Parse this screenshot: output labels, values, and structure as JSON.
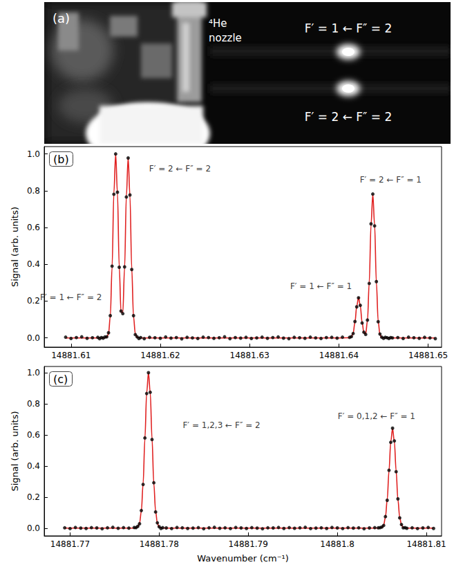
{
  "chart_data": [
    {
      "type": "image",
      "label": "(a)",
      "nozzle_label": "⁴He nozzle",
      "spot_labels": [
        "F′ = 1 ← F″ = 2",
        "F′ = 2 ← F″ = 2"
      ]
    },
    {
      "type": "scatter",
      "label": "(b)",
      "ylabel": "Signal (arb. units)",
      "grid": false,
      "xlim": [
        14881.607,
        14881.6515
      ],
      "xticks": [
        14881.61,
        14881.62,
        14881.63,
        14881.64,
        14881.65
      ],
      "ylim": [
        -0.05,
        1.04
      ],
      "yticks": [
        {
          "value": 0,
          "label": "0.0"
        },
        0.2,
        0.4,
        0.6,
        0.8,
        {
          "value": 1,
          "label": "1.0"
        }
      ],
      "x": [
        14881.6094,
        14881.61,
        14881.6106,
        14881.6112,
        14881.6118,
        14881.6124,
        14881.613,
        14881.6132,
        14881.6134,
        14881.6136,
        14881.6138,
        14881.614,
        14881.6142,
        14881.6144,
        14881.6146,
        14881.6148,
        14881.615,
        14881.6152,
        14881.6154,
        14881.6156,
        14881.6158,
        14881.616,
        14881.6162,
        14881.6164,
        14881.6166,
        14881.6168,
        14881.617,
        14881.6172,
        14881.6174,
        14881.6176,
        14881.6178,
        14881.6182,
        14881.6188,
        14881.6194,
        14881.62,
        14881.6206,
        14881.6212,
        14881.6218,
        14881.6224,
        14881.623,
        14881.6236,
        14881.6242,
        14881.6248,
        14881.6254,
        14881.626,
        14881.6266,
        14881.6272,
        14881.6278,
        14881.6284,
        14881.629,
        14881.6296,
        14881.6302,
        14881.6308,
        14881.6314,
        14881.632,
        14881.6326,
        14881.6332,
        14881.6338,
        14881.6344,
        14881.635,
        14881.6356,
        14881.6362,
        14881.6368,
        14881.6374,
        14881.638,
        14881.6386,
        14881.6392,
        14881.6398,
        14881.6404,
        14881.6412,
        14881.6414,
        14881.6416,
        14881.6418,
        14881.642,
        14881.6422,
        14881.6424,
        14881.6426,
        14881.6428,
        14881.643,
        14881.6432,
        14881.6434,
        14881.6436,
        14881.6438,
        14881.644,
        14881.6442,
        14881.6444,
        14881.6446,
        14881.6448,
        14881.645,
        14881.6452,
        14881.6454,
        14881.6456,
        14881.6458,
        14881.646,
        14881.6466,
        14881.6472,
        14881.6478,
        14881.6484,
        14881.649,
        14881.6496,
        14881.6502,
        14881.6508
      ],
      "series": [
        {
          "type": "line",
          "line_style": "solid",
          "color": "#e02020",
          "values": [
            0,
            0,
            0,
            0,
            0,
            0,
            0,
            0,
            0,
            0,
            0,
            0.003,
            0.022,
            0.118,
            0.386,
            0.788,
            1.0,
            0.788,
            0.389,
            0.14,
            0.138,
            0.381,
            0.772,
            0.98,
            0.772,
            0.378,
            0.116,
            0.022,
            0.003,
            0,
            0,
            0,
            0,
            0,
            0,
            0,
            0,
            0,
            0,
            0,
            0,
            0,
            0,
            0,
            0,
            0,
            0,
            0,
            0,
            0,
            0,
            0,
            0,
            0,
            0,
            0,
            0,
            0,
            0,
            0,
            0,
            0,
            0,
            0,
            0,
            0,
            0,
            0,
            0,
            0.001,
            0.005,
            0.026,
            0.085,
            0.173,
            0.22,
            0.173,
            0.085,
            0.028,
            0.022,
            0.093,
            0.301,
            0.615,
            0.78,
            0.615,
            0.301,
            0.092,
            0.017,
            0.002,
            0,
            0,
            0,
            0,
            0,
            0,
            0,
            0,
            0,
            0,
            0,
            0,
            0,
            0
          ]
        },
        {
          "type": "scatter",
          "marker": "circle",
          "color": "#000000",
          "values": [
            0.004,
            -0.003,
            0.002,
            0.006,
            -0.002,
            0.001,
            0.003,
            -0.004,
            0.002,
            -0.001,
            0.005,
            0.006,
            0.028,
            0.121,
            0.39,
            0.781,
            1.0,
            0.792,
            0.384,
            0.146,
            0.132,
            0.386,
            0.766,
            0.978,
            0.777,
            0.372,
            0.121,
            0.018,
            0.006,
            -0.003,
            0.002,
            -0.004,
            0.003,
            0.001,
            -0.002,
            0.005,
            -0.001,
            0.002,
            -0.005,
            0.003,
            0.0,
            -0.003,
            0.004,
            0.002,
            -0.002,
            0.001,
            0.006,
            -0.004,
            0.002,
            -0.001,
            0.003,
            -0.003,
            0.0,
            0.004,
            -0.002,
            0.002,
            0.005,
            -0.001,
            -0.004,
            0.003,
            0.001,
            -0.002,
            0.004,
            0.0,
            -0.003,
            0.002,
            0.003,
            -0.001,
            0.004,
            0.003,
            0.007,
            0.024,
            0.089,
            0.169,
            0.218,
            0.177,
            0.081,
            0.031,
            0.019,
            0.097,
            0.296,
            0.62,
            0.782,
            0.609,
            0.306,
            0.088,
            0.021,
            0.004,
            -0.002,
            0.003,
            0.001,
            -0.003,
            0.002,
            0.0,
            0.002,
            -0.003,
            0.004,
            0.001,
            -0.002,
            0.003,
            0.0,
            -0.004
          ]
        }
      ],
      "annotations": [
        {
          "text": "F′ = 1 ← F″ = 2",
          "x": 14881.61,
          "y": 0.22
        },
        {
          "text": "F′ = 2 ← F″ = 2",
          "x": 14881.6222,
          "y": 0.92
        },
        {
          "text": "F′ = 1 ← F″ = 1",
          "x": 14881.638,
          "y": 0.28
        },
        {
          "text": "F′ = 2 ← F″ = 1",
          "x": 14881.6458,
          "y": 0.86
        }
      ]
    },
    {
      "type": "scatter",
      "label": "(c)",
      "xlabel": "Wavenumber (cm⁻¹)",
      "ylabel": "Signal (arb. units)",
      "grid": false,
      "xlim": [
        14881.7671,
        14881.8117
      ],
      "xticks": [
        14881.77,
        14881.78,
        14881.79,
        14881.8,
        14881.81
      ],
      "ylim": [
        -0.05,
        1.04
      ],
      "yticks": [
        {
          "value": 0,
          "label": "0.0"
        },
        0.2,
        0.4,
        0.6,
        0.8,
        {
          "value": 1,
          "label": "1.0"
        }
      ],
      "x": [
        14881.7694,
        14881.77,
        14881.7706,
        14881.7712,
        14881.7718,
        14881.7724,
        14881.773,
        14881.7736,
        14881.7742,
        14881.7748,
        14881.7754,
        14881.776,
        14881.7766,
        14881.7772,
        14881.7774,
        14881.7776,
        14881.7778,
        14881.778,
        14881.7782,
        14881.7784,
        14881.7786,
        14881.7788,
        14881.779,
        14881.7792,
        14881.7794,
        14881.7796,
        14881.7798,
        14881.78,
        14881.7802,
        14881.7804,
        14881.7808,
        14881.7814,
        14881.782,
        14881.7826,
        14881.7832,
        14881.7838,
        14881.7844,
        14881.785,
        14881.7856,
        14881.7862,
        14881.7868,
        14881.7874,
        14881.788,
        14881.7886,
        14881.7892,
        14881.7898,
        14881.7904,
        14881.791,
        14881.7916,
        14881.7922,
        14881.7928,
        14881.7934,
        14881.794,
        14881.7946,
        14881.7952,
        14881.7958,
        14881.7964,
        14881.797,
        14881.7976,
        14881.7982,
        14881.7988,
        14881.7994,
        14881.8,
        14881.8006,
        14881.8012,
        14881.8018,
        14881.8024,
        14881.803,
        14881.8036,
        14881.8042,
        14881.8046,
        14881.8048,
        14881.805,
        14881.8052,
        14881.8054,
        14881.8056,
        14881.8058,
        14881.806,
        14881.8062,
        14881.8064,
        14881.8066,
        14881.8068,
        14881.807,
        14881.8072,
        14881.8074,
        14881.8076,
        14881.8078,
        14881.8084,
        14881.809,
        14881.8096,
        14881.8102,
        14881.8108
      ],
      "series": [
        {
          "type": "line",
          "line_style": "solid",
          "color": "#e02020",
          "values": [
            0,
            0,
            0,
            0,
            0,
            0,
            0,
            0,
            0,
            0,
            0,
            0,
            0,
            0,
            0.001,
            0.007,
            0.031,
            0.109,
            0.287,
            0.575,
            0.871,
            1.0,
            0.871,
            0.575,
            0.287,
            0.109,
            0.031,
            0.007,
            0.001,
            0,
            0,
            0,
            0,
            0,
            0,
            0,
            0,
            0,
            0,
            0,
            0,
            0,
            0,
            0,
            0,
            0,
            0,
            0,
            0,
            0,
            0,
            0,
            0,
            0,
            0,
            0,
            0,
            0,
            0,
            0,
            0,
            0,
            0,
            0,
            0,
            0,
            0,
            0,
            0,
            0,
            0,
            0.001,
            0.004,
            0.02,
            0.07,
            0.184,
            0.368,
            0.557,
            0.64,
            0.557,
            0.368,
            0.184,
            0.07,
            0.02,
            0.004,
            0.001,
            0,
            0,
            0,
            0,
            0,
            0
          ]
        },
        {
          "type": "scatter",
          "marker": "circle",
          "color": "#000000",
          "values": [
            0.002,
            -0.003,
            0.004,
            0.0,
            -0.002,
            0.003,
            0.001,
            -0.004,
            0.002,
            0.005,
            -0.001,
            0.003,
            0.0,
            0.004,
            0.003,
            0.011,
            0.028,
            0.113,
            0.281,
            0.58,
            0.866,
            1.0,
            0.874,
            0.57,
            0.292,
            0.104,
            0.034,
            0.009,
            -0.002,
            0.003,
            0.001,
            -0.003,
            0.004,
            0.002,
            -0.002,
            0.0,
            0.003,
            -0.004,
            0.002,
            0.005,
            -0.001,
            0.002,
            -0.003,
            0.004,
            0.001,
            -0.002,
            0.003,
            0.0,
            -0.004,
            0.002,
            0.001,
            0.004,
            -0.002,
            0.003,
            -0.001,
            0.002,
            0.005,
            -0.003,
            0.0,
            0.002,
            -0.002,
            0.004,
            0.001,
            -0.003,
            0.003,
            0.0,
            0.002,
            -0.004,
            0.001,
            0.003,
            0.002,
            0.003,
            0.007,
            0.017,
            0.074,
            0.179,
            0.372,
            0.552,
            0.643,
            0.561,
            0.363,
            0.188,
            0.066,
            0.023,
            0.002,
            0.003,
            -0.001,
            0.002,
            -0.003,
            0.001,
            0.004,
            -0.002
          ]
        }
      ],
      "annotations": [
        {
          "text": "F′ = 1,2,3 ← F″ = 2",
          "x": 14881.787,
          "y": 0.66
        },
        {
          "text": "F′ = 0,1,2 ← F″ = 1",
          "x": 14881.8044,
          "y": 0.72
        }
      ]
    }
  ]
}
